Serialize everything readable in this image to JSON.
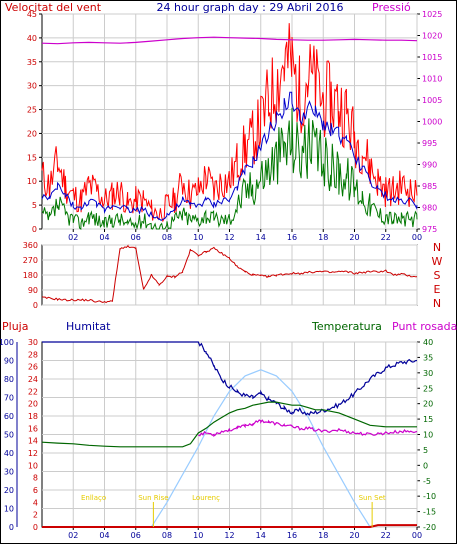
{
  "colors": {
    "wind": "#ff0000",
    "wind_avg": "#0000cc",
    "wind_base": "#007700",
    "pressure": "#cc00cc",
    "direction": "#cc0000",
    "humidity": "#000099",
    "temperature": "#006600",
    "dewpoint": "#cc00cc",
    "rain": "#cc0000",
    "sun": "#99ccff",
    "sun_label": "#e6cc00",
    "grid": "#cccccc",
    "border": "#000000"
  },
  "chart_data": [
    {
      "type": "line",
      "title": "24 hour graph day : 29 Abril 2016",
      "left_title": "Velocitat del vent",
      "right_title": "Pressió",
      "x_ticks": [
        "02",
        "04",
        "06",
        "08",
        "10",
        "12",
        "14",
        "16",
        "18",
        "20",
        "22",
        "00"
      ],
      "x_range": [
        0,
        24
      ],
      "ylim": [
        0,
        45
      ],
      "y_ticks": [
        0,
        5,
        10,
        15,
        20,
        25,
        30,
        35,
        40,
        45
      ],
      "y2lim": [
        975,
        1025
      ],
      "y2_ticks": [
        975,
        980,
        985,
        990,
        995,
        1000,
        1005,
        1010,
        1015,
        1020,
        1025
      ],
      "series": [
        {
          "name": "Wind gust",
          "axis": "left",
          "x": [
            0,
            0.5,
            1,
            1.5,
            2,
            2.5,
            3,
            3.5,
            4,
            4.5,
            5,
            5.5,
            6,
            6.5,
            7,
            7.5,
            8,
            8.5,
            9,
            9.5,
            10,
            10.5,
            11,
            11.5,
            12,
            12.5,
            13,
            13.5,
            14,
            14.5,
            15,
            15.5,
            16,
            16.5,
            17,
            17.5,
            18,
            18.5,
            19,
            19.5,
            20,
            20.5,
            21,
            21.5,
            22,
            22.5,
            23,
            23.5,
            24
          ],
          "values": [
            11,
            9,
            14,
            9,
            7,
            6,
            9,
            8,
            6,
            7,
            8,
            5,
            6,
            6,
            4,
            3,
            5,
            6,
            10,
            7,
            8,
            11,
            8,
            10,
            10,
            14,
            17,
            19,
            22,
            27,
            30,
            35,
            34,
            28,
            32,
            30,
            27,
            27,
            26,
            24,
            19,
            17,
            13,
            10,
            8,
            8,
            9,
            8,
            7
          ]
        },
        {
          "name": "Wind average",
          "axis": "left",
          "x": [
            0,
            0.5,
            1,
            1.5,
            2,
            2.5,
            3,
            3.5,
            4,
            4.5,
            5,
            5.5,
            6,
            6.5,
            7,
            7.5,
            8,
            8.5,
            9,
            9.5,
            10,
            10.5,
            11,
            11.5,
            12,
            12.5,
            13,
            13.5,
            14,
            14.5,
            15,
            15.5,
            16,
            16.5,
            17,
            17.5,
            18,
            18.5,
            19,
            19.5,
            20,
            20.5,
            21,
            21.5,
            22,
            22.5,
            23,
            23.5,
            24
          ],
          "values": [
            7,
            6,
            9,
            7,
            5,
            4,
            6,
            5,
            4,
            5,
            5,
            4,
            4,
            4,
            3,
            2,
            3,
            4,
            6,
            5,
            5,
            6,
            5,
            6,
            6,
            9,
            12,
            14,
            17,
            20,
            23,
            26,
            27,
            23,
            25,
            24,
            22,
            21,
            20,
            18,
            15,
            13,
            10,
            8,
            7,
            6,
            6,
            6,
            5
          ]
        },
        {
          "name": "Wind speed",
          "axis": "left",
          "x": [
            0,
            0.5,
            1,
            1.5,
            2,
            2.5,
            3,
            3.5,
            4,
            4.5,
            5,
            5.5,
            6,
            6.5,
            7,
            7.5,
            8,
            8.5,
            9,
            9.5,
            10,
            10.5,
            11,
            11.5,
            12,
            12.5,
            13,
            13.5,
            14,
            14.5,
            15,
            15.5,
            16,
            16.5,
            17,
            17.5,
            18,
            18.5,
            19,
            19.5,
            20,
            20.5,
            21,
            21.5,
            22,
            22.5,
            23,
            23.5,
            24
          ],
          "values": [
            3,
            2,
            5,
            3,
            2,
            1,
            3,
            2,
            1,
            2,
            2,
            1,
            1,
            2,
            1,
            0,
            1,
            2,
            3,
            2,
            2,
            3,
            2,
            2,
            2,
            5,
            8,
            9,
            11,
            13,
            15,
            17,
            19,
            16,
            17,
            16,
            14,
            13,
            12,
            11,
            9,
            7,
            5,
            3,
            3,
            2,
            2,
            2,
            2
          ]
        },
        {
          "name": "Pressure",
          "axis": "right",
          "x": [
            0,
            1,
            2,
            3,
            4,
            5,
            6,
            7,
            8,
            9,
            10,
            11,
            12,
            13,
            14,
            15,
            16,
            17,
            18,
            19,
            20,
            21,
            22,
            23,
            24
          ],
          "values": [
            1018.2,
            1018.1,
            1018.3,
            1018.4,
            1018.3,
            1018.2,
            1018.4,
            1018.7,
            1019.0,
            1019.3,
            1019.5,
            1019.6,
            1019.5,
            1019.4,
            1019.3,
            1019.1,
            1019.0,
            1018.9,
            1018.9,
            1019.0,
            1019.1,
            1019.0,
            1018.9,
            1018.9,
            1018.8
          ]
        }
      ]
    },
    {
      "type": "line",
      "y_ticks": [
        0,
        90,
        180,
        270,
        360
      ],
      "ylim": [
        0,
        360
      ],
      "direction_labels": [
        "N",
        "W",
        "S",
        "E",
        "N"
      ],
      "x_range": [
        0,
        24
      ],
      "series": [
        {
          "name": "Wind direction",
          "x": [
            0,
            0.5,
            1,
            1.5,
            2,
            2.5,
            3,
            3.5,
            4,
            4.5,
            5,
            5.5,
            6,
            6.5,
            7,
            7.5,
            8,
            8.5,
            9,
            9.5,
            10,
            10.5,
            11,
            11.5,
            12,
            12.5,
            13,
            13.5,
            14,
            14.5,
            15,
            15.5,
            16,
            16.5,
            17,
            17.5,
            18,
            18.5,
            19,
            19.5,
            20,
            20.5,
            21,
            21.5,
            22,
            22.5,
            23,
            23.5,
            24
          ],
          "values": [
            45,
            40,
            35,
            30,
            30,
            30,
            30,
            20,
            20,
            20,
            340,
            350,
            340,
            90,
            180,
            120,
            170,
            170,
            200,
            330,
            300,
            320,
            340,
            310,
            280,
            230,
            200,
            180,
            175,
            170,
            180,
            185,
            190,
            190,
            195,
            200,
            200,
            195,
            200,
            200,
            190,
            195,
            200,
            200,
            205,
            180,
            185,
            175,
            170
          ]
        }
      ]
    },
    {
      "type": "line",
      "left_title": "Pluja",
      "left2_title": "Humitat",
      "right_title": "Temperatura",
      "right2_title": "Punt rosada",
      "x_ticks": [
        "02",
        "04",
        "06",
        "08",
        "10",
        "12",
        "14",
        "16",
        "18",
        "20",
        "22",
        "00"
      ],
      "x_range": [
        0,
        24
      ],
      "rain_ticks": [
        0,
        2,
        4,
        6,
        8,
        10,
        12,
        14,
        16,
        18,
        20,
        22,
        24,
        26,
        28,
        30
      ],
      "rain_lim": [
        0,
        30
      ],
      "humidity_ticks": [
        0,
        10,
        20,
        30,
        40,
        50,
        60,
        70,
        80,
        90,
        100
      ],
      "humidity_lim": [
        0,
        100
      ],
      "temp_ticks": [
        -20,
        -15,
        -10,
        -5,
        0,
        5,
        10,
        15,
        20,
        25,
        30,
        35,
        40
      ],
      "temp_lim": [
        -20,
        40
      ],
      "annotations": [
        {
          "label": "Enllaço",
          "x": 3.3
        },
        {
          "label": "Sun Rise",
          "x": 7.0
        },
        {
          "label": "Lourenç",
          "x": 10.5
        },
        {
          "label": "Sun Set",
          "x": 21.0
        }
      ],
      "series": [
        {
          "name": "Humitat",
          "axis": "humidity",
          "x": [
            0,
            1,
            2,
            3,
            4,
            5,
            6,
            7,
            8,
            9,
            10,
            10.5,
            11,
            11.5,
            12,
            12.5,
            13,
            13.5,
            14,
            14.5,
            15,
            15.5,
            16,
            16.5,
            17,
            17.5,
            18,
            19,
            20,
            21,
            22,
            23,
            24
          ],
          "values": [
            100,
            100,
            100,
            100,
            100,
            100,
            100,
            100,
            100,
            100,
            100,
            95,
            87,
            80,
            76,
            73,
            71,
            70,
            72,
            69,
            67,
            64,
            62,
            63,
            61,
            62,
            63,
            66,
            72,
            80,
            86,
            89,
            90
          ]
        },
        {
          "name": "Temperatura",
          "axis": "temp",
          "x": [
            0,
            1,
            2,
            3,
            4,
            5,
            6,
            7,
            8,
            9,
            9.5,
            10,
            10.5,
            11,
            11.5,
            12,
            12.5,
            13,
            13.5,
            14,
            14.5,
            15,
            15.5,
            16,
            16.5,
            17,
            17.5,
            18,
            19,
            20,
            21,
            22,
            23,
            24
          ],
          "values": [
            7.5,
            7.2,
            7.0,
            6.5,
            6.2,
            6.0,
            6.0,
            6.0,
            6.0,
            6.0,
            7.0,
            10.5,
            12.0,
            14.0,
            15.5,
            17.0,
            18.0,
            18.5,
            19.5,
            20.0,
            20.5,
            20.5,
            20.0,
            19.5,
            19.5,
            18.8,
            18.0,
            18.0,
            17.0,
            15.0,
            13.0,
            12.5,
            12.5,
            12.5
          ]
        },
        {
          "name": "Punt rosada",
          "axis": "temp",
          "x": [
            10,
            10.5,
            11,
            11.5,
            12,
            12.5,
            13,
            13.5,
            14,
            14.5,
            15,
            15.5,
            16,
            16.5,
            17,
            18,
            19,
            20,
            21,
            22,
            23,
            24
          ],
          "values": [
            10.0,
            10.5,
            10.0,
            11.0,
            11.5,
            12.0,
            13.0,
            13.5,
            14.5,
            14.0,
            13.5,
            13.0,
            12.5,
            12.0,
            12.0,
            11.0,
            11.5,
            10.5,
            10.0,
            10.5,
            11.0,
            11.0
          ]
        },
        {
          "name": "Solar",
          "axis": "temp",
          "x": [
            7,
            8,
            9,
            10,
            11,
            12,
            13,
            14,
            15,
            16,
            17,
            18,
            19,
            20,
            21
          ],
          "values": [
            -20,
            -12,
            -3,
            6,
            16,
            24,
            29,
            31,
            29,
            24,
            16,
            6,
            -3,
            -12,
            -20
          ]
        },
        {
          "name": "Pluja",
          "axis": "rain",
          "x": [
            0,
            21,
            21.5,
            24
          ],
          "values": [
            0,
            0,
            0.3,
            0.3
          ]
        }
      ]
    }
  ]
}
